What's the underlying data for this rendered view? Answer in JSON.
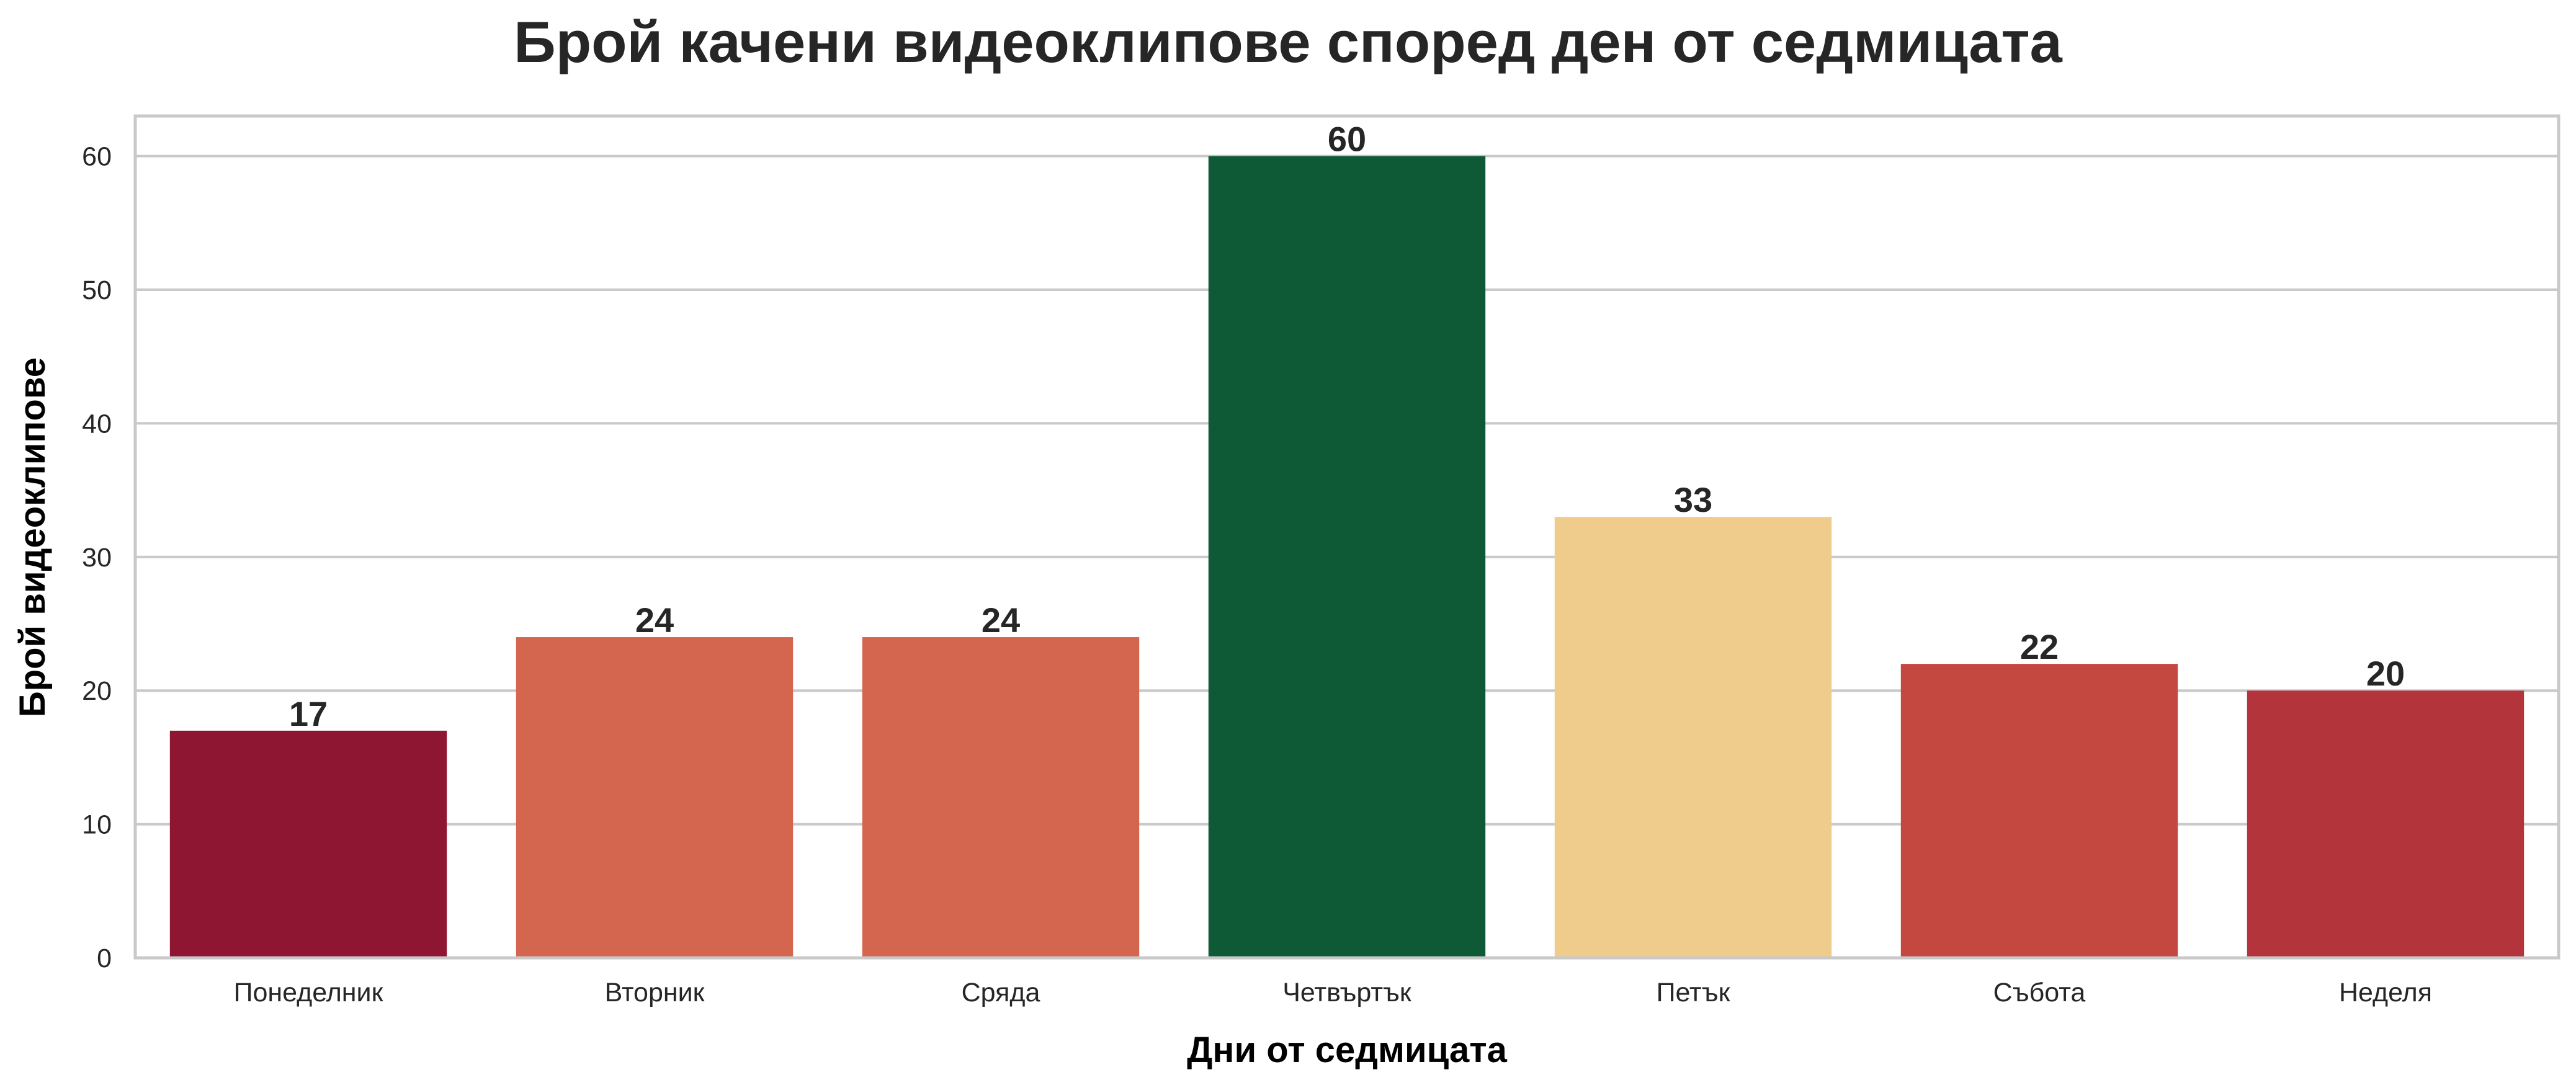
{
  "chart_data": {
    "type": "bar",
    "title": "Брой качени видеоклипове според ден от седмицата",
    "xlabel": "Дни от седмицата",
    "ylabel": "Брой видеоклипове",
    "categories": [
      "Понеделник",
      "Вторник",
      "Сряда",
      "Четвъртък",
      "Петък",
      "Събота",
      "Неделя"
    ],
    "values": [
      17,
      24,
      24,
      60,
      33,
      22,
      20
    ],
    "colors": [
      "#8f1632",
      "#d4654e",
      "#d4654e",
      "#0e5a37",
      "#efcc8c",
      "#c4483f",
      "#b3343a"
    ],
    "ylim": [
      0,
      63
    ],
    "yticks": [
      "0",
      "10",
      "20",
      "30",
      "40",
      "50",
      "60"
    ],
    "grid": true,
    "data_labels": true
  }
}
